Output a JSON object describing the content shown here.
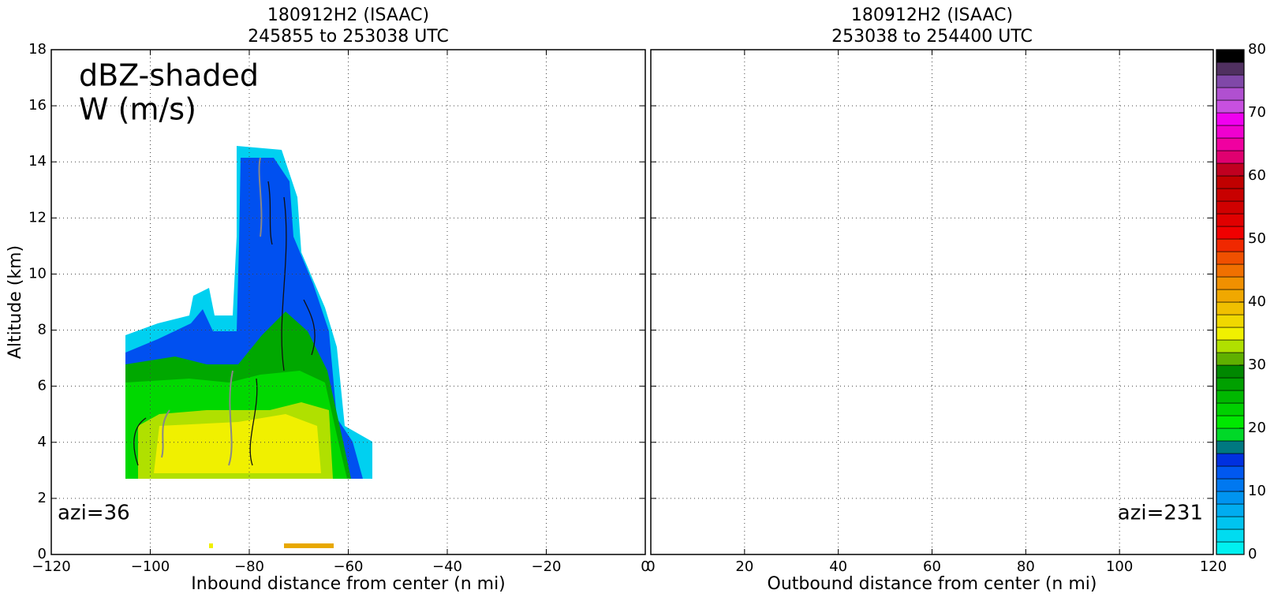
{
  "chart_data": [
    {
      "type": "contour",
      "title": "180912H2 (ISAAC)",
      "subtitle": "245855 to 253038 UTC",
      "xlabel": "Inbound distance from center (n mi)",
      "ylabel": "Altitude (km)",
      "annotations": [
        "dBZ-shaded",
        "W (m/s)",
        "azi=36"
      ],
      "xlim": [
        -120,
        0
      ],
      "ylim": [
        0,
        18
      ],
      "xticks": [
        {
          "value": -120,
          "label": "−120"
        },
        {
          "value": -100,
          "label": "−100"
        },
        {
          "value": -80,
          "label": "−80"
        },
        {
          "value": -60,
          "label": "−60"
        },
        {
          "value": -40,
          "label": "−40"
        },
        {
          "value": -20,
          "label": "−20"
        },
        0
      ],
      "yticks": [
        0,
        2,
        4,
        6,
        8,
        10,
        12,
        14,
        16,
        18
      ],
      "ytick_labels": true,
      "grid": true
    },
    {
      "type": "contour",
      "title": "180912H2 (ISAAC)",
      "subtitle": "253038 to 254400 UTC",
      "xlabel": "Outbound distance from center (n mi)",
      "annotations": [
        "azi=231"
      ],
      "xlim": [
        0,
        120
      ],
      "ylim": [
        0,
        18
      ],
      "xticks": [
        0,
        20,
        40,
        60,
        80,
        100,
        120
      ],
      "yticks": [
        0,
        2,
        4,
        6,
        8,
        10,
        12,
        14,
        16,
        18
      ],
      "ytick_labels": false,
      "grid": true
    },
    {
      "type": "colorbar",
      "ylim": [
        0,
        80
      ],
      "yticks": [
        0,
        10,
        20,
        30,
        40,
        50,
        60,
        70,
        80
      ],
      "colors": [
        "#00f0f0",
        "#00dcf0",
        "#00c4f0",
        "#00acf0",
        "#0094f0",
        "#0078f0",
        "#0058f0",
        "#0030e0",
        "#007880",
        "#00d828",
        "#00e800",
        "#00d000",
        "#00b800",
        "#00a000",
        "#008800",
        "#60b000",
        "#b0e000",
        "#f0f000",
        "#f0d800",
        "#f0c000",
        "#f0a800",
        "#f09000",
        "#f07000",
        "#f05000",
        "#f02800",
        "#f00000",
        "#e00000",
        "#d00000",
        "#c80000",
        "#c00000",
        "#c00020",
        "#e00070",
        "#f000a0",
        "#f000d0",
        "#f000f0",
        "#c850e0",
        "#b050d0",
        "#8048a8",
        "#503060",
        "#000000"
      ]
    }
  ]
}
